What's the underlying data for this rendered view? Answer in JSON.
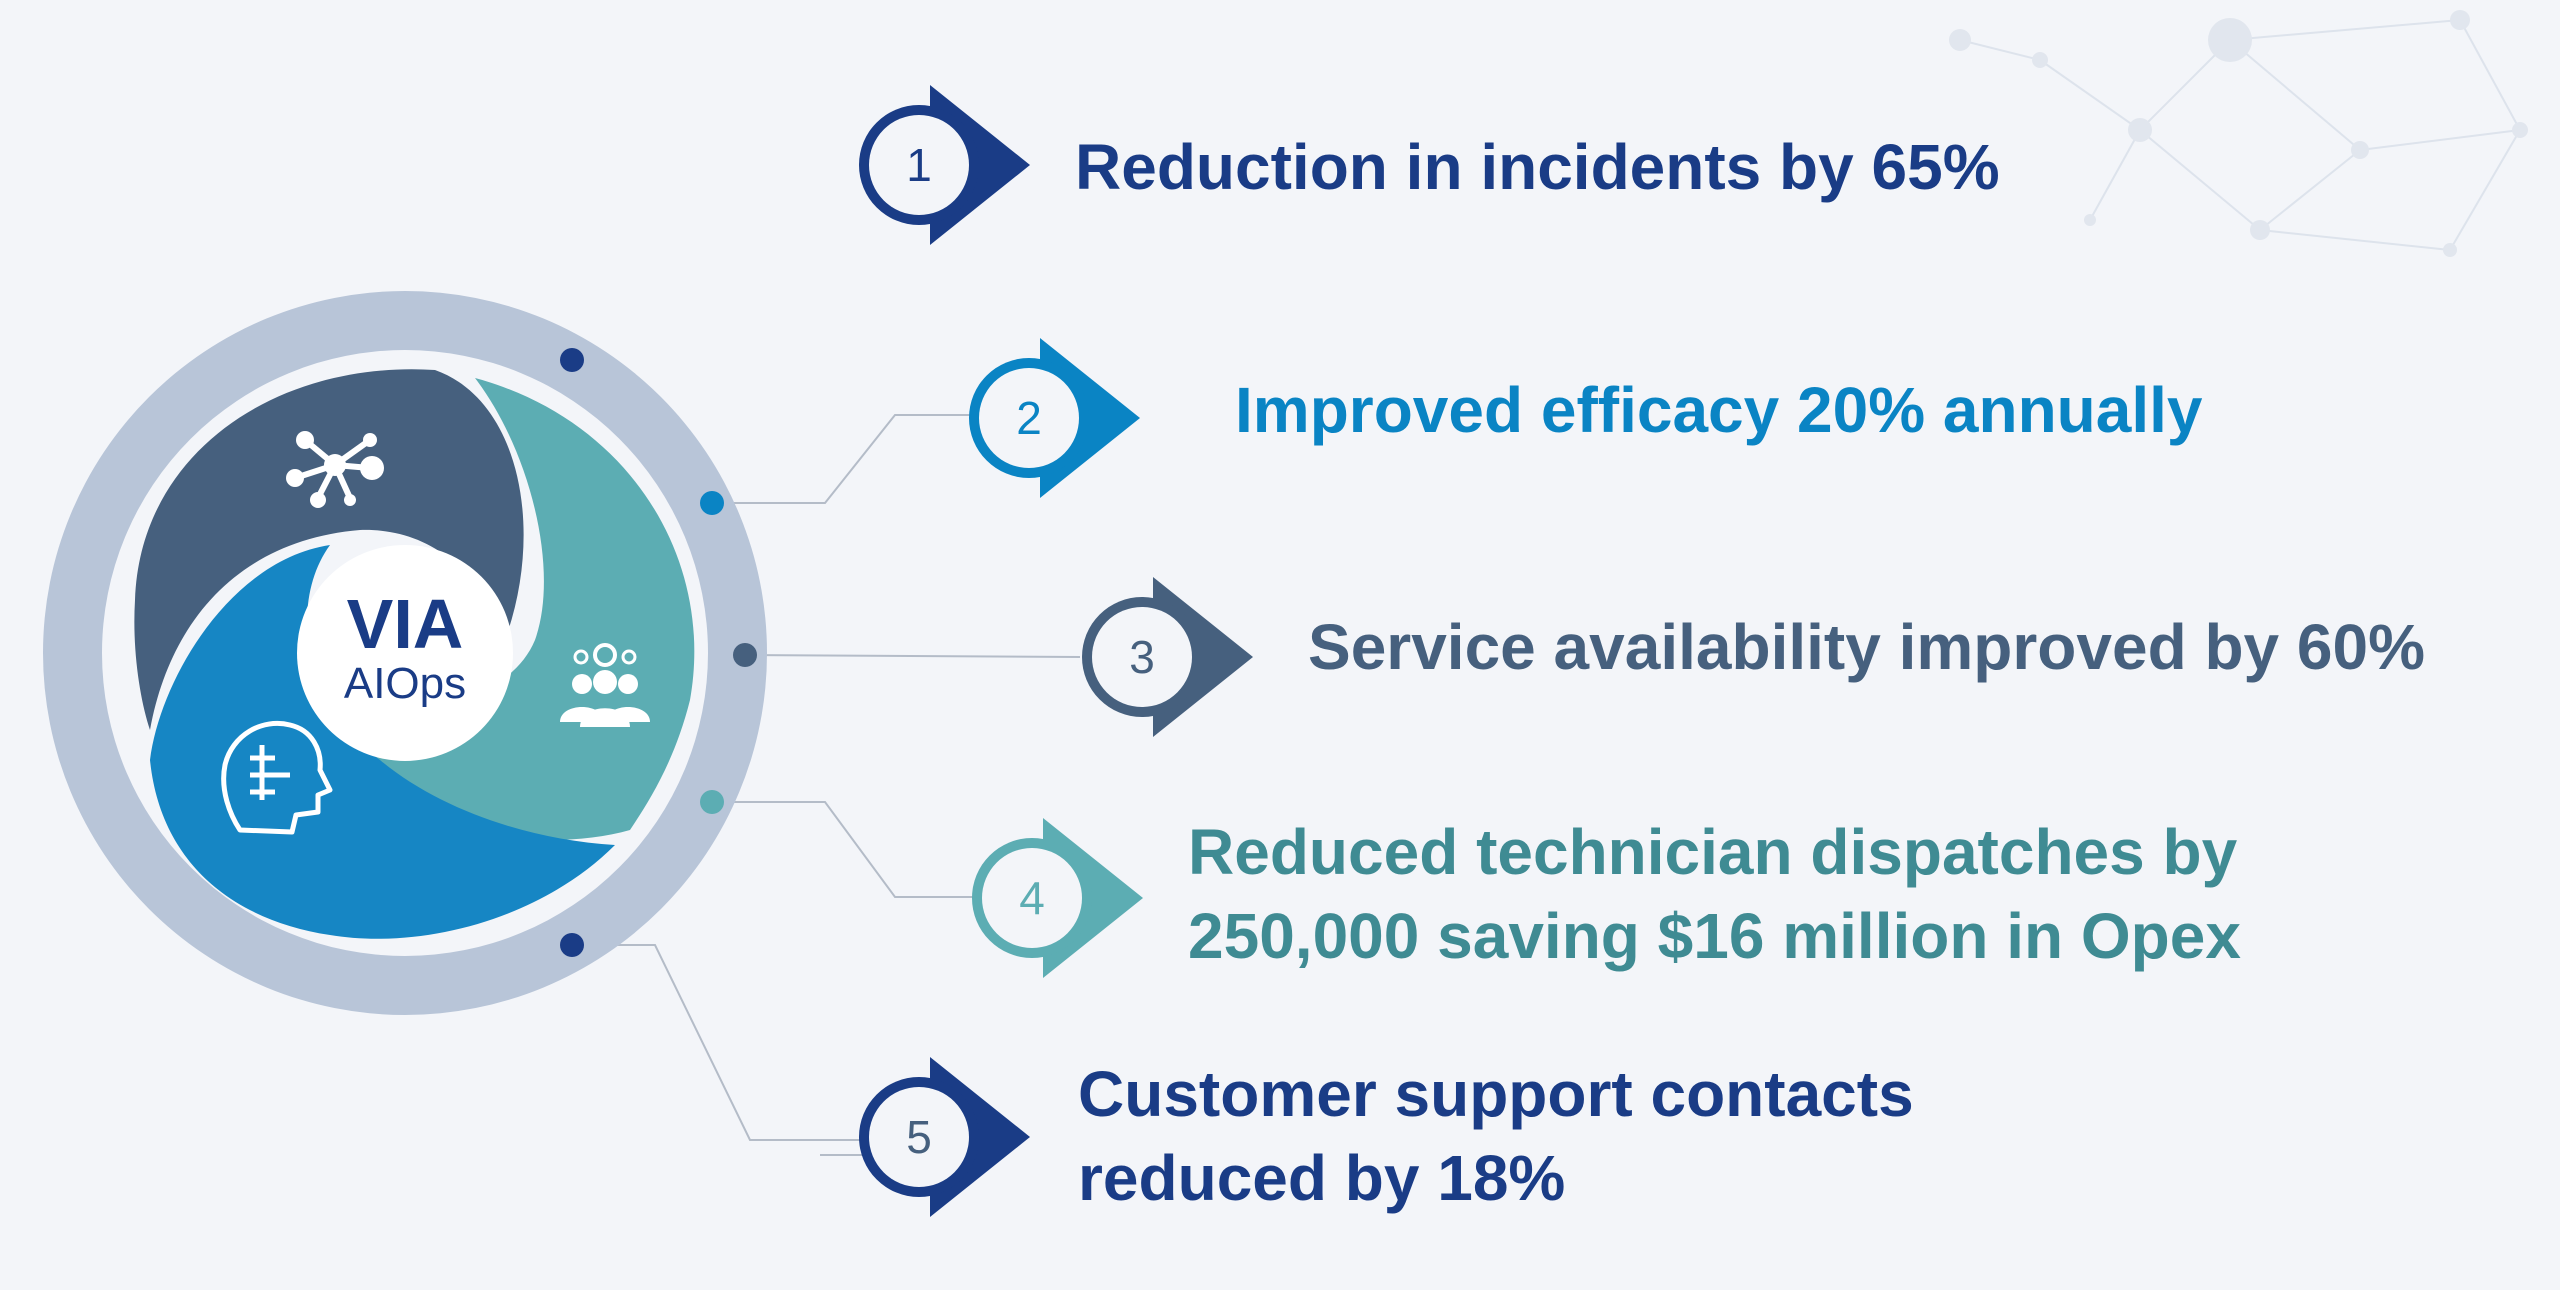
{
  "hub": {
    "title": "VIA",
    "subtitle": "AIOps",
    "icons": [
      "network-hub-icon",
      "team-settings-icon",
      "ai-brain-head-icon"
    ]
  },
  "colors": {
    "navy": "#1a3c86",
    "bright_blue": "#0a84c4",
    "slate": "#46607e",
    "teal": "#5cadb3",
    "ring": "#b8c5d8"
  },
  "benefits": [
    {
      "number": "1",
      "lines": [
        "Reduction in incidents by 65%"
      ],
      "color": "#1a3c86"
    },
    {
      "number": "2",
      "lines": [
        "Improved efficacy 20% annually"
      ],
      "color": "#0a84c4"
    },
    {
      "number": "3",
      "lines": [
        "Service availability improved by 60%"
      ],
      "color": "#46607e"
    },
    {
      "number": "4",
      "lines": [
        "Reduced technician dispatches by",
        "250,000 saving $16 million in Opex"
      ],
      "color": "#3f8b93"
    },
    {
      "number": "5",
      "lines": [
        "Customer support contacts",
        "reduced by 18%"
      ],
      "color": "#1a3c86"
    }
  ]
}
